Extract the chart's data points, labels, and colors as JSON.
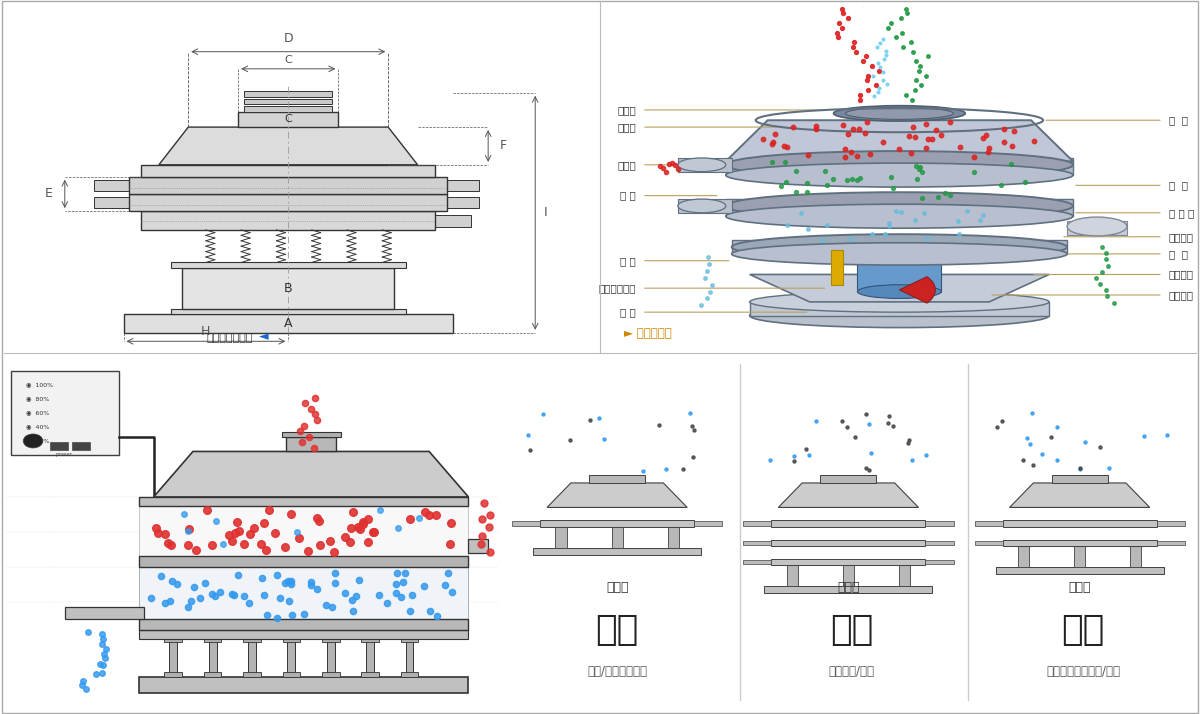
{
  "bg_color": "#ffffff",
  "border_color": "#cccccc",
  "left_labels_structural": [
    "进料口",
    "防尘盖",
    "出料口",
    "束 环",
    "弹 簧",
    "运输固定螺栓",
    "机 座"
  ],
  "right_labels_structural": [
    "筛  网",
    "网  架",
    "加 重 块",
    "上部重锤",
    "筛  盘",
    "振动电机",
    "下部重锤"
  ],
  "section_titles": [
    "分级",
    "过滤",
    "除杂"
  ],
  "section_subtitles": [
    "颗粒/粉末准确分级",
    "去除异物/结块",
    "去除液体中的颗粒/异物"
  ],
  "section_labels": [
    "单层式",
    "三层式",
    "双层式"
  ],
  "red_color": "#e03030",
  "blue_color": "#3399ee",
  "green_color": "#22aa55",
  "teal_color": "#22bbbb",
  "dim_line_color": "#555555",
  "label_line_color": "#b8a060",
  "steel_light": "#d0d4dc",
  "steel_mid": "#b0b8c4",
  "steel_dark": "#8090a0",
  "line_color": "#333333"
}
